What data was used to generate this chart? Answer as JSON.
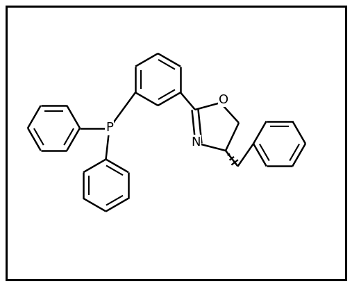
{
  "background_color": "#ffffff",
  "border_color": "#000000",
  "line_color": "#000000",
  "line_width": 1.8,
  "figsize": [
    5.07,
    4.12
  ],
  "dpi": 100,
  "xlim": [
    0,
    10.14
  ],
  "ylim": [
    0,
    8.24
  ]
}
